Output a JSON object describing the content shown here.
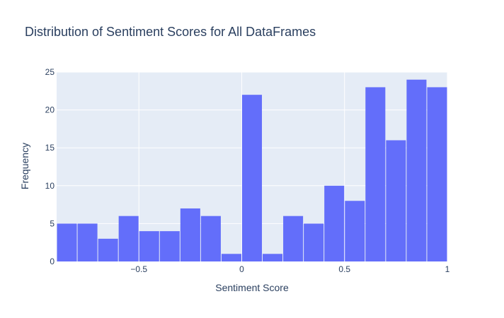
{
  "chart_data": {
    "type": "bar",
    "title": "Distribution of Sentiment Scores for All DataFrames",
    "xlabel": "Sentiment Score",
    "ylabel": "Frequency",
    "bin_width": 0.1,
    "x_start": -0.9,
    "x_end": 1.0,
    "xlim": [
      -0.9,
      1.0
    ],
    "ylim": [
      0,
      25
    ],
    "x_ticks": [
      {
        "value": -0.5,
        "label": "−0.5"
      },
      {
        "value": 0,
        "label": "0"
      },
      {
        "value": 0.5,
        "label": "0.5"
      },
      {
        "value": 1,
        "label": "1"
      }
    ],
    "y_ticks": [
      {
        "value": 0,
        "label": "0"
      },
      {
        "value": 5,
        "label": "5"
      },
      {
        "value": 10,
        "label": "10"
      },
      {
        "value": 15,
        "label": "15"
      },
      {
        "value": 20,
        "label": "20"
      },
      {
        "value": 25,
        "label": "25"
      }
    ],
    "values": [
      5,
      5,
      3,
      6,
      4,
      4,
      7,
      6,
      1,
      22,
      1,
      6,
      5,
      10,
      8,
      23,
      16,
      24,
      23
    ],
    "grid": true,
    "legend": "none",
    "colors": {
      "bar": "#636efa",
      "plot_bg": "#e5ecf6",
      "grid": "#ffffff",
      "text": "#2a3f5f"
    }
  }
}
